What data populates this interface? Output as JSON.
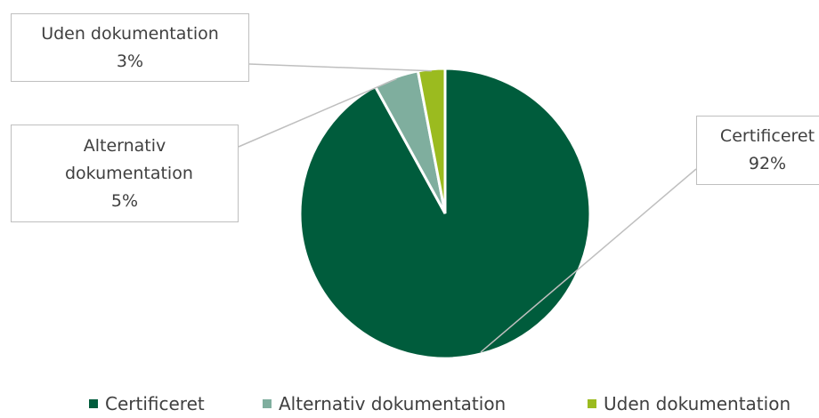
{
  "chart_data": {
    "type": "pie",
    "categories": [
      "Certificeret",
      "Alternativ dokumentation",
      "Uden dokumentation"
    ],
    "values": [
      92,
      5,
      3
    ],
    "value_labels": [
      "92%",
      "5%",
      "3%"
    ],
    "colors": [
      "#005c3c",
      "#7fae9e",
      "#9bbb1f"
    ],
    "legend": "bottom"
  }
}
